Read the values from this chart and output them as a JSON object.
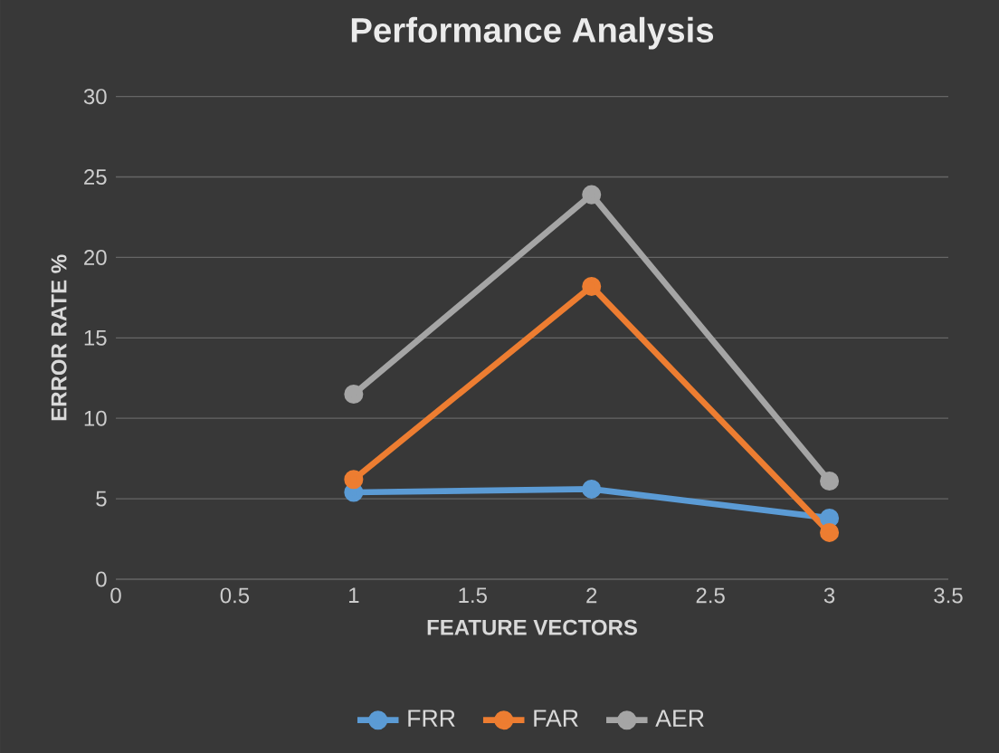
{
  "chart_data": {
    "type": "line",
    "title": "Performance Analysis",
    "xlabel": "FEATURE VECTORS",
    "ylabel": "ERROR RATE %",
    "x": [
      1,
      2,
      3
    ],
    "series": [
      {
        "name": "FRR",
        "color": "#5b9bd5",
        "values": [
          5.4,
          5.6,
          3.8
        ]
      },
      {
        "name": "FAR",
        "color": "#ed7d31",
        "values": [
          6.2,
          18.2,
          2.9
        ]
      },
      {
        "name": "AER",
        "color": "#a5a5a5",
        "values": [
          11.5,
          23.9,
          6.1
        ]
      }
    ],
    "xlim": [
      0,
      3.5
    ],
    "xticks": [
      0,
      0.5,
      1,
      1.5,
      2,
      2.5,
      3,
      3.5
    ],
    "ylim": [
      0,
      30
    ],
    "yticks": [
      0,
      5,
      10,
      15,
      20,
      25,
      30
    ],
    "grid": "y",
    "legend": "bottom",
    "marker": "circle",
    "line_style": "solid"
  }
}
